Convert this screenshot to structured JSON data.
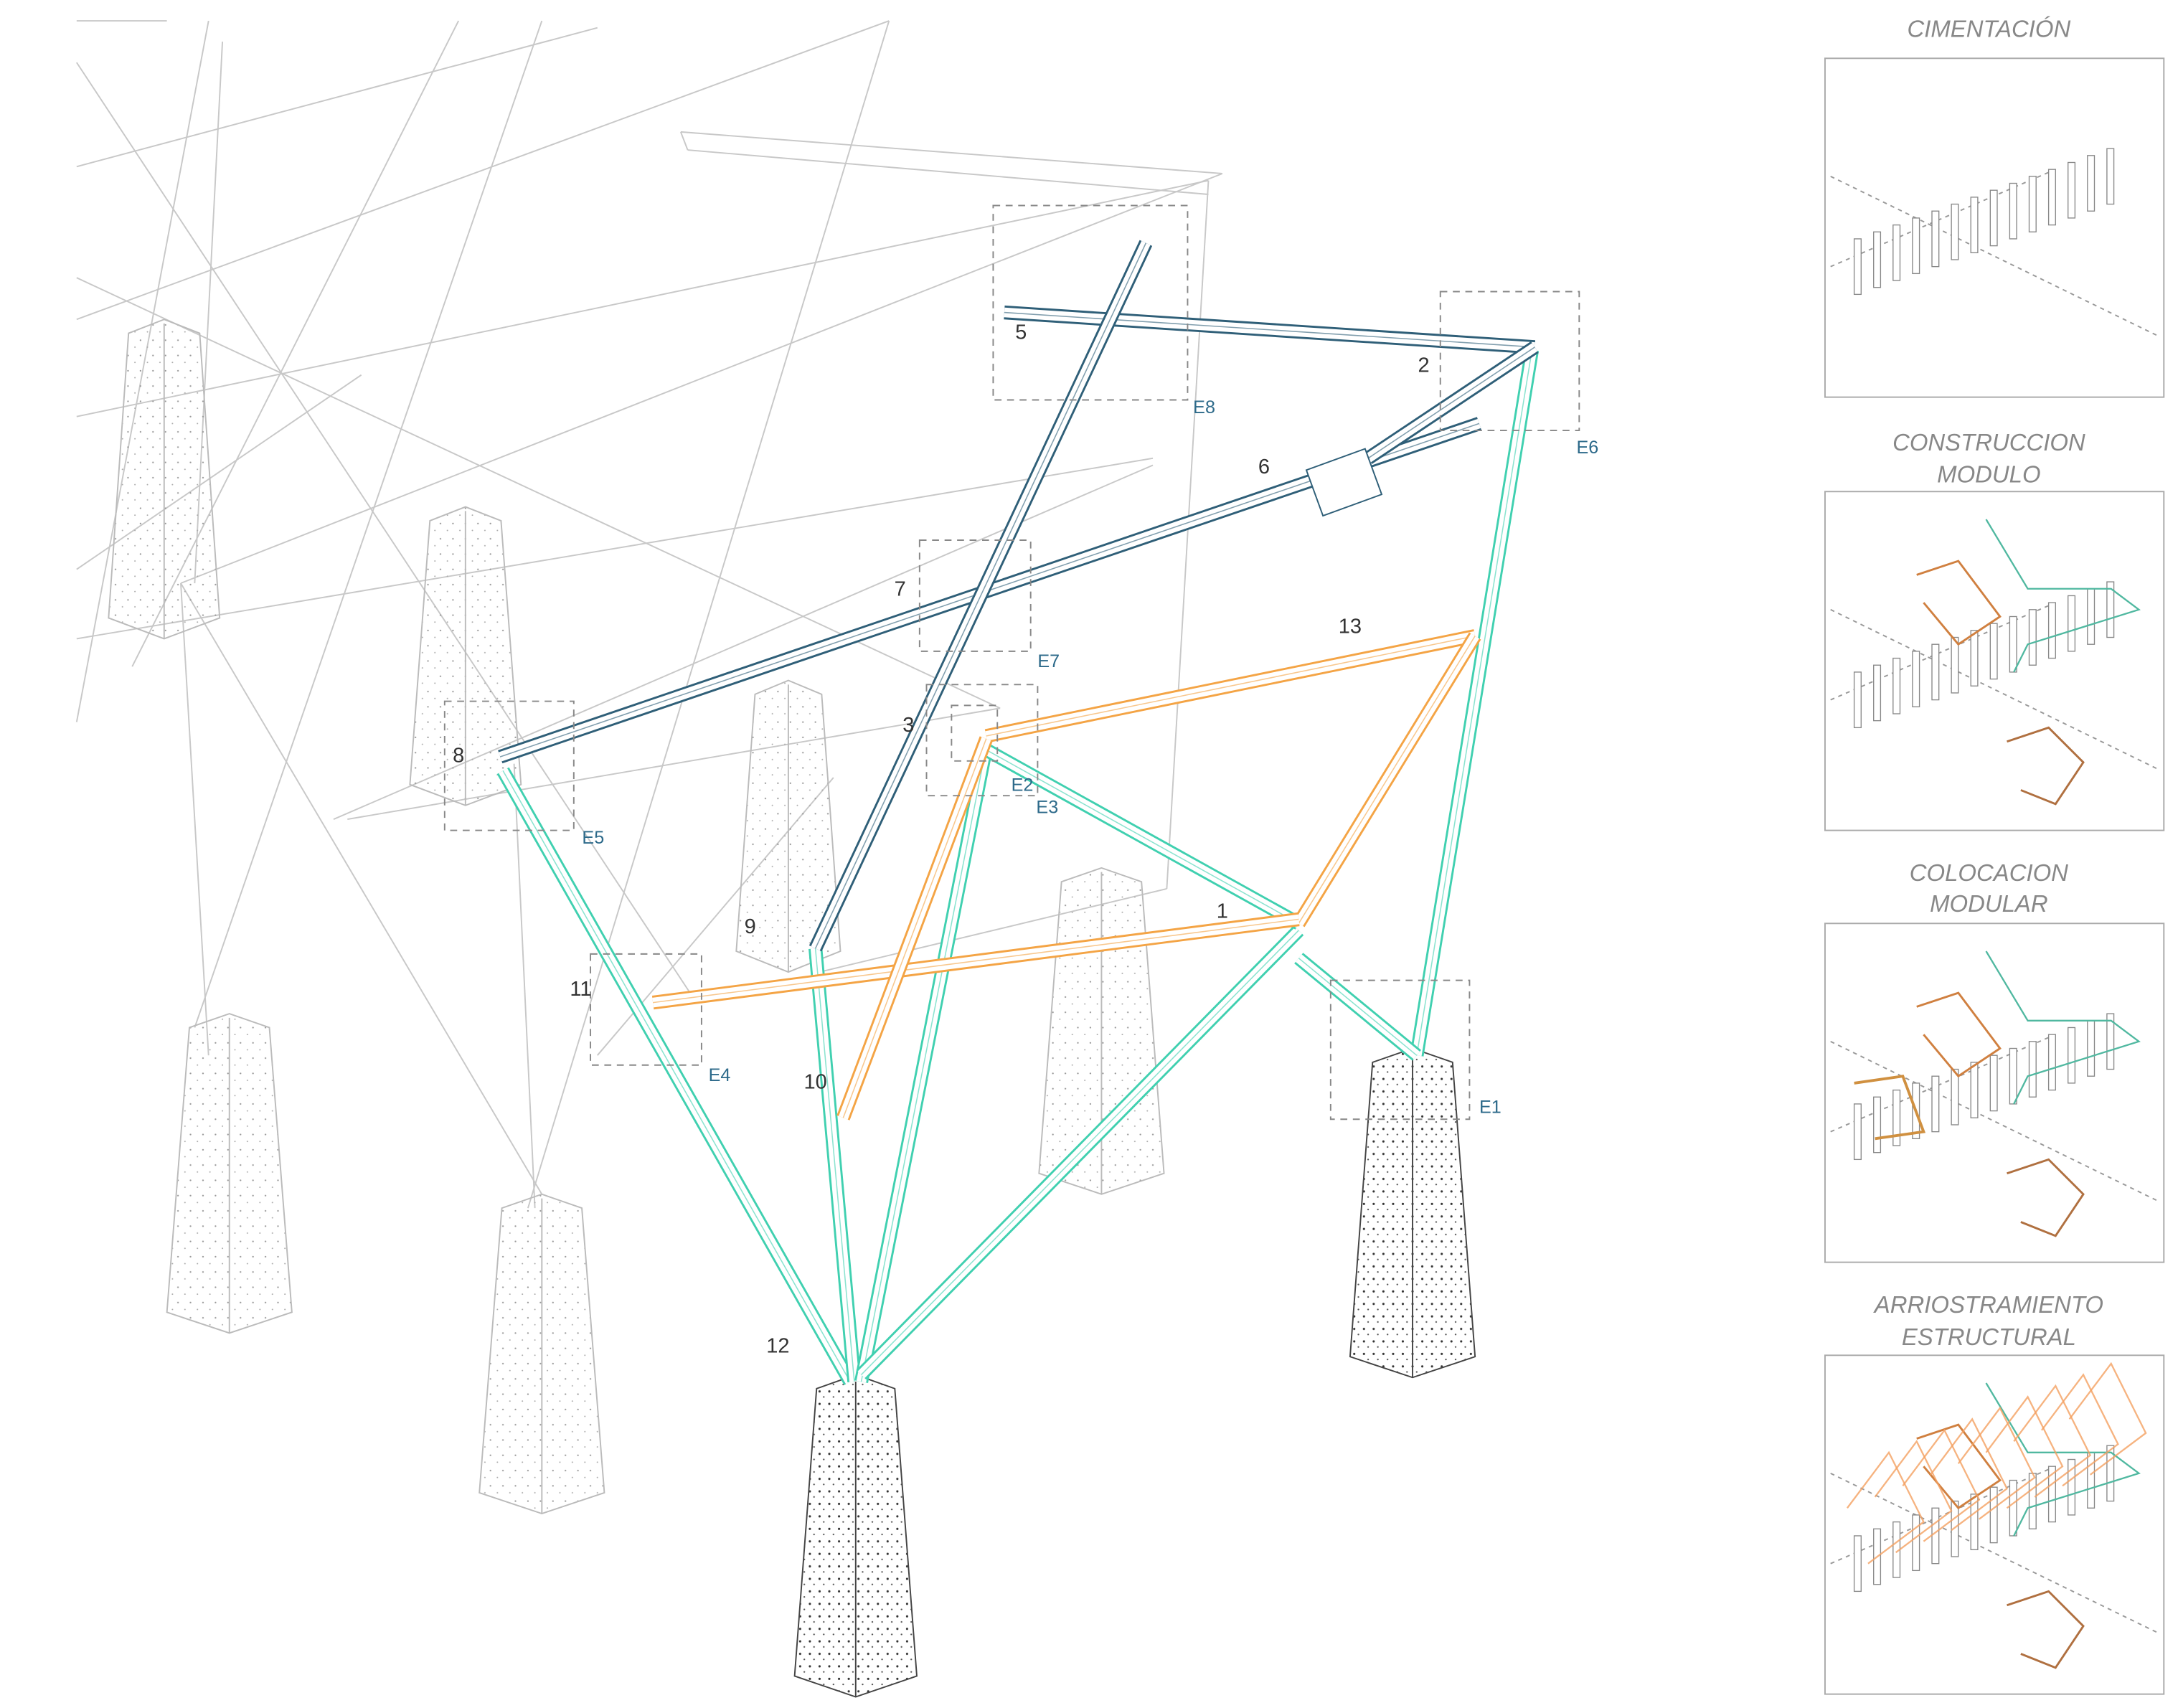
{
  "members": [
    "1",
    "2",
    "3",
    "5",
    "6",
    "7",
    "8",
    "9",
    "10",
    "11",
    "12",
    "13"
  ],
  "details": [
    "E1",
    "E2",
    "E3",
    "E4",
    "E5",
    "E6",
    "E7",
    "E8"
  ],
  "panels": [
    {
      "title": [
        "CIMENTACIÓN"
      ]
    },
    {
      "title": [
        "CONSTRUCCION",
        "MODULO"
      ]
    },
    {
      "title": [
        "COLOCACION",
        "MODULAR"
      ]
    },
    {
      "title": [
        "ARRIOSTRAMIENTO",
        "ESTRUCTURAL"
      ]
    }
  ]
}
